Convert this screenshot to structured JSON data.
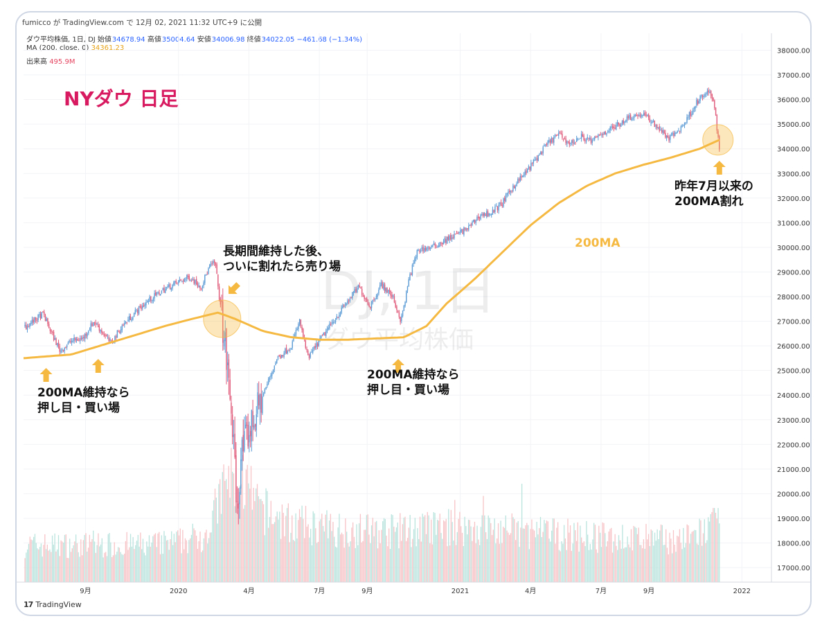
{
  "header": {
    "publisher_line": "fumicco が TradingView.com で 12月 02, 2021 11:32 UTC+9 に公開"
  },
  "legend": {
    "symbol": "ダウ平均株価, 1日, DJ",
    "open_label": "始値",
    "open": "34678.94",
    "high_label": "高値",
    "high": "35004.64",
    "low_label": "安値",
    "low": "34006.98",
    "close_label": "終値",
    "close": "34022.05",
    "change": "−461.68 (−1.34%)",
    "ma_label": "MA (200, close, 0)",
    "ma_value": "34361.23",
    "volume_label": "出来高",
    "volume_value": "495.9M"
  },
  "footer": {
    "brand": "TradingView",
    "logo": "17"
  },
  "colors": {
    "up_candle": "#5b9bd5",
    "down_candle": "#e05a7a",
    "ma_line": "#f5b942",
    "annotation_title": "#d81b60",
    "arrow": "#f5b942",
    "highlight": "#f5b942",
    "volume_up": "#b9e3dd",
    "volume_down": "#f7c3c6"
  },
  "chart_data": {
    "type": "candlestick",
    "title": "NYダウ 日足",
    "watermark": {
      "symbol": "DJ, 1日",
      "name": "ダウ平均株価"
    },
    "y_ticks": [
      17000,
      18000,
      19000,
      20000,
      21000,
      22000,
      23000,
      24000,
      25000,
      26000,
      27000,
      28000,
      29000,
      30000,
      31000,
      32000,
      33000,
      34000,
      35000,
      36000,
      37000,
      38000
    ],
    "y_tick_labels": [
      "17000.00",
      "18000.00",
      "19000.00",
      "20000.00",
      "21000.00",
      "22000.00",
      "23000.00",
      "24000.00",
      "25000.00",
      "26000.00",
      "27000.00",
      "28000.00",
      "29000.00",
      "30000.00",
      "31000.00",
      "32000.00",
      "33000.00",
      "34000.00",
      "35000.00",
      "36000.00",
      "37000.00",
      "38000.00"
    ],
    "x_labels": [
      {
        "t": 2019.67,
        "label": "9月"
      },
      {
        "t": 2020.0,
        "label": "2020"
      },
      {
        "t": 2020.25,
        "label": "4月"
      },
      {
        "t": 2020.5,
        "label": "7月"
      },
      {
        "t": 2020.67,
        "label": "9月"
      },
      {
        "t": 2021.0,
        "label": "2021"
      },
      {
        "t": 2021.25,
        "label": "4月"
      },
      {
        "t": 2021.5,
        "label": "7月"
      },
      {
        "t": 2021.67,
        "label": "9月"
      },
      {
        "t": 2022.0,
        "label": "2022"
      }
    ],
    "x_range": [
      2019.45,
      2022.1
    ],
    "y_range": [
      16400,
      38200
    ],
    "price_path": [
      [
        2019.46,
        26800
      ],
      [
        2019.52,
        27300
      ],
      [
        2019.55,
        26500
      ],
      [
        2019.58,
        25800
      ],
      [
        2019.62,
        26200
      ],
      [
        2019.66,
        26300
      ],
      [
        2019.7,
        27000
      ],
      [
        2019.74,
        26400
      ],
      [
        2019.76,
        26100
      ],
      [
        2019.8,
        26800
      ],
      [
        2019.85,
        27400
      ],
      [
        2019.9,
        27900
      ],
      [
        2019.95,
        28300
      ],
      [
        2020.0,
        28600
      ],
      [
        2020.04,
        28800
      ],
      [
        2020.08,
        28400
      ],
      [
        2020.11,
        29200
      ],
      [
        2020.13,
        29400
      ],
      [
        2020.15,
        27500
      ],
      [
        2020.17,
        25500
      ],
      [
        2020.19,
        23000
      ],
      [
        2020.21,
        19000
      ],
      [
        2020.22,
        21500
      ],
      [
        2020.25,
        22500
      ],
      [
        2020.3,
        24000
      ],
      [
        2020.35,
        25500
      ],
      [
        2020.4,
        26000
      ],
      [
        2020.43,
        27000
      ],
      [
        2020.46,
        25500
      ],
      [
        2020.5,
        26200
      ],
      [
        2020.55,
        27000
      ],
      [
        2020.6,
        27800
      ],
      [
        2020.64,
        28400
      ],
      [
        2020.68,
        27600
      ],
      [
        2020.72,
        28500
      ],
      [
        2020.76,
        28000
      ],
      [
        2020.79,
        27000
      ],
      [
        2020.82,
        28800
      ],
      [
        2020.85,
        29900
      ],
      [
        2020.9,
        30000
      ],
      [
        2020.95,
        30300
      ],
      [
        2021.0,
        30600
      ],
      [
        2021.03,
        30800
      ],
      [
        2021.07,
        31300
      ],
      [
        2021.11,
        31400
      ],
      [
        2021.15,
        31800
      ],
      [
        2021.19,
        32500
      ],
      [
        2021.23,
        33000
      ],
      [
        2021.27,
        33600
      ],
      [
        2021.31,
        34200
      ],
      [
        2021.35,
        34600
      ],
      [
        2021.39,
        34200
      ],
      [
        2021.43,
        34500
      ],
      [
        2021.47,
        34300
      ],
      [
        2021.5,
        34600
      ],
      [
        2021.55,
        34900
      ],
      [
        2021.6,
        35300
      ],
      [
        2021.65,
        35400
      ],
      [
        2021.7,
        34900
      ],
      [
        2021.74,
        34400
      ],
      [
        2021.78,
        34800
      ],
      [
        2021.81,
        35300
      ],
      [
        2021.84,
        35900
      ],
      [
        2021.88,
        36300
      ],
      [
        2021.9,
        36000
      ],
      [
        2021.91,
        35000
      ],
      [
        2021.92,
        34022
      ]
    ],
    "ma_path": [
      [
        2019.45,
        25500
      ],
      [
        2019.62,
        25650
      ],
      [
        2019.72,
        26000
      ],
      [
        2019.85,
        26450
      ],
      [
        2019.95,
        26800
      ],
      [
        2020.05,
        27100
      ],
      [
        2020.14,
        27350
      ],
      [
        2020.2,
        27100
      ],
      [
        2020.3,
        26600
      ],
      [
        2020.4,
        26350
      ],
      [
        2020.5,
        26250
      ],
      [
        2020.6,
        26250
      ],
      [
        2020.7,
        26300
      ],
      [
        2020.8,
        26350
      ],
      [
        2020.88,
        26800
      ],
      [
        2020.95,
        27700
      ],
      [
        2021.05,
        28700
      ],
      [
        2021.15,
        29800
      ],
      [
        2021.25,
        30900
      ],
      [
        2021.35,
        31800
      ],
      [
        2021.45,
        32500
      ],
      [
        2021.55,
        33000
      ],
      [
        2021.65,
        33350
      ],
      [
        2021.75,
        33650
      ],
      [
        2021.85,
        34000
      ],
      [
        2021.92,
        34361
      ]
    ],
    "volume_profile": [
      [
        2019.45,
        0.35
      ],
      [
        2019.9,
        0.35
      ],
      [
        2020.0,
        0.38
      ],
      [
        2020.1,
        0.45
      ],
      [
        2020.17,
        0.95
      ],
      [
        2020.22,
        1.0
      ],
      [
        2020.28,
        0.7
      ],
      [
        2020.4,
        0.55
      ],
      [
        2020.55,
        0.5
      ],
      [
        2020.75,
        0.48
      ],
      [
        2021.0,
        0.52
      ],
      [
        2021.2,
        0.48
      ],
      [
        2021.5,
        0.42
      ],
      [
        2021.8,
        0.4
      ],
      [
        2021.92,
        0.55
      ]
    ],
    "annotations": [
      {
        "id": "support-1",
        "lines": [
          "200MA維持なら",
          "押し目・買い場"
        ]
      },
      {
        "id": "break-2020",
        "lines": [
          "長期間維持した後、",
          "ついに割れたら売り場"
        ]
      },
      {
        "id": "support-2",
        "lines": [
          "200MA維持なら",
          "押し目・買い場"
        ]
      },
      {
        "id": "ma-label",
        "lines": [
          "200MA"
        ]
      },
      {
        "id": "break-2021",
        "lines": [
          "昨年7月以来の",
          "200MA割れ"
        ]
      }
    ]
  }
}
